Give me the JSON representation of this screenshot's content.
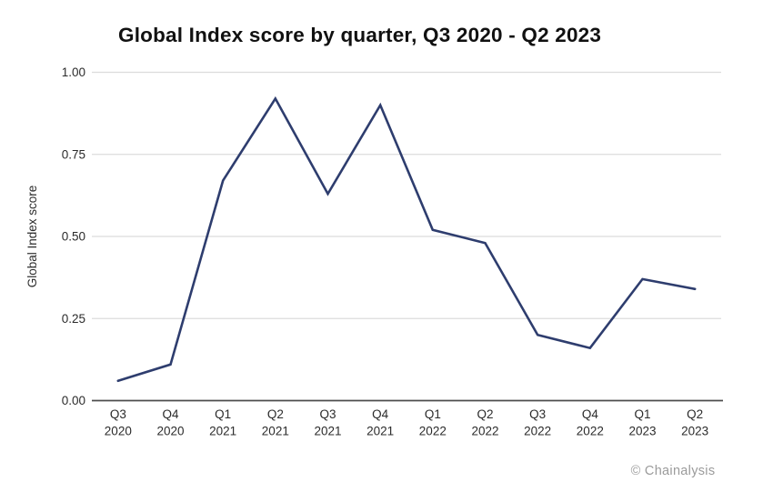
{
  "chart": {
    "title": "Global Index score by quarter, Q3 2020 - Q2 2023",
    "attribution": "© Chainalysis"
  },
  "chart_data": {
    "type": "line",
    "title": "Global Index score by quarter, Q3 2020 - Q2 2023",
    "xlabel": "",
    "ylabel": "Global Index score",
    "ylim": [
      0,
      1
    ],
    "grid": true,
    "legend_position": "none",
    "colors": {
      "line": "#2e3d6e",
      "grid": "#dcdcdc",
      "axis": "#4d4d4d",
      "tick_text": "#2b2b2b",
      "muted_text": "#9b9b9b"
    },
    "yticks": [
      {
        "value": 0.0,
        "label": "0.00"
      },
      {
        "value": 0.25,
        "label": "0.25"
      },
      {
        "value": 0.5,
        "label": "0.50"
      },
      {
        "value": 0.75,
        "label": "0.75"
      },
      {
        "value": 1.0,
        "label": "1.00"
      }
    ],
    "categories": [
      {
        "quarter": "Q3",
        "year": "2020"
      },
      {
        "quarter": "Q4",
        "year": "2020"
      },
      {
        "quarter": "Q1",
        "year": "2021"
      },
      {
        "quarter": "Q2",
        "year": "2021"
      },
      {
        "quarter": "Q3",
        "year": "2021"
      },
      {
        "quarter": "Q4",
        "year": "2021"
      },
      {
        "quarter": "Q1",
        "year": "2022"
      },
      {
        "quarter": "Q2",
        "year": "2022"
      },
      {
        "quarter": "Q3",
        "year": "2022"
      },
      {
        "quarter": "Q4",
        "year": "2022"
      },
      {
        "quarter": "Q1",
        "year": "2023"
      },
      {
        "quarter": "Q2",
        "year": "2023"
      }
    ],
    "series": [
      {
        "name": "Global Index score",
        "values": [
          0.06,
          0.11,
          0.67,
          0.92,
          0.63,
          0.9,
          0.52,
          0.48,
          0.2,
          0.16,
          0.37,
          0.34
        ]
      }
    ]
  }
}
